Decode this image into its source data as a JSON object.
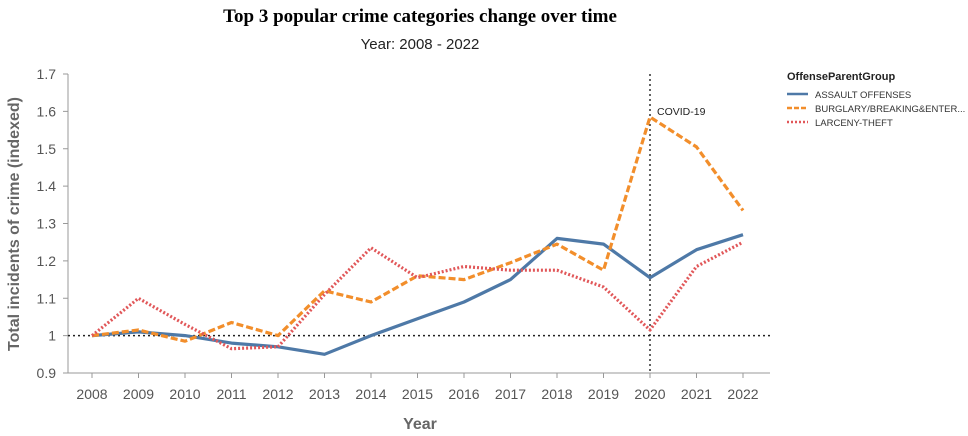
{
  "chart_data": {
    "type": "line",
    "title": "Top 3 popular crime categories change over time",
    "subtitle": "Year: 2008 - 2022",
    "xlabel": "Year",
    "ylabel": "Total incidents of crime (indexed)",
    "x": [
      "2008",
      "2009",
      "2010",
      "2011",
      "2012",
      "2013",
      "2014",
      "2015",
      "2016",
      "2017",
      "2018",
      "2019",
      "2020",
      "2021",
      "2022"
    ],
    "ylim": [
      0.9,
      1.7
    ],
    "yticks": [
      "0.9",
      "1",
      "1.1",
      "1.2",
      "1.3",
      "1.4",
      "1.5",
      "1.6",
      "1.7"
    ],
    "grid": false,
    "reference_lines": {
      "y": 1,
      "x": "2020"
    },
    "annotation": {
      "x": "2020",
      "text": "COVID-19"
    },
    "legend": {
      "title": "OffenseParentGroup",
      "placement": "right"
    },
    "series": [
      {
        "name": "ASSAULT OFFENSES",
        "color": "#4e79a7",
        "style": "solid",
        "values": [
          1.0,
          1.01,
          1.0,
          0.98,
          0.97,
          0.95,
          1.0,
          1.045,
          1.09,
          1.15,
          1.26,
          1.245,
          1.155,
          1.23,
          1.27
        ]
      },
      {
        "name": "BURGLARY/BREAKING&ENTER...",
        "color": "#f28e2b",
        "style": "dashed",
        "values": [
          1.0,
          1.015,
          0.985,
          1.035,
          1.0,
          1.12,
          1.09,
          1.16,
          1.15,
          1.195,
          1.245,
          1.175,
          1.585,
          1.505,
          1.335
        ]
      },
      {
        "name": "LARCENY-THEFT",
        "color": "#e15759",
        "style": "dotted",
        "values": [
          1.0,
          1.1,
          1.03,
          0.965,
          0.97,
          1.11,
          1.235,
          1.155,
          1.185,
          1.175,
          1.175,
          1.13,
          1.015,
          1.185,
          1.25
        ]
      }
    ]
  }
}
